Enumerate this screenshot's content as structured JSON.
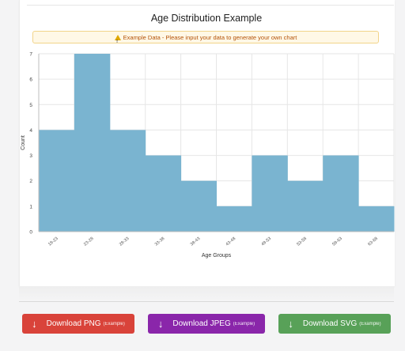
{
  "chart_title": "Age Distribution Example",
  "notice": "Example Data - Please input your data to generate your own chart",
  "chart_data": {
    "type": "bar",
    "categories": [
      "18-23",
      "23-28",
      "28-33",
      "33-38",
      "38-43",
      "43-48",
      "48-53",
      "53-58",
      "58-63",
      "63-68"
    ],
    "values": [
      4,
      7,
      4,
      3,
      2,
      1,
      3,
      2,
      3,
      1
    ],
    "title": "Age Distribution Example",
    "xlabel": "Age Groups",
    "ylabel": "Count",
    "ylim": [
      0,
      7
    ],
    "yticks": [
      0,
      1,
      2,
      3,
      4,
      5,
      6,
      7
    ],
    "grid": true,
    "legend": "none",
    "bar_color": "#7ab4d0"
  },
  "buttons": {
    "png": {
      "label": "Download PNG",
      "sub": "(Example)",
      "color": "#d9433a"
    },
    "jpeg": {
      "label": "Download JPEG",
      "sub": "(Example)",
      "color": "#8a26aa"
    },
    "svg": {
      "label": "Download SVG",
      "sub": "(Example)",
      "color": "#58a158"
    }
  }
}
